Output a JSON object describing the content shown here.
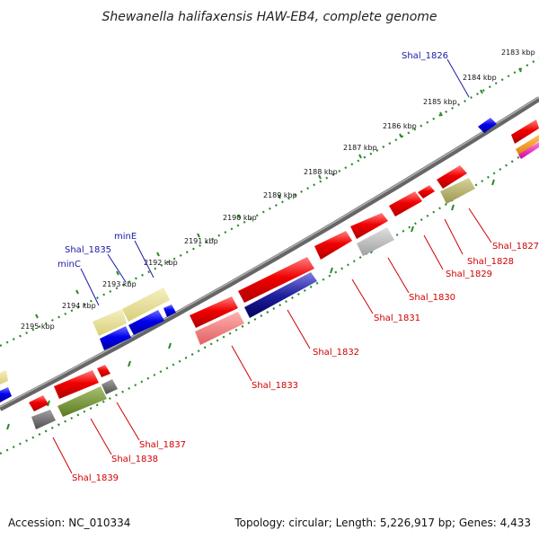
{
  "title": "Shewanella halifaxensis HAW-EB4, complete genome",
  "accession": "Accession: NC_010334",
  "summary": "Topology: circular; Length: 5,226,917 bp; Genes: 4,433",
  "colors": {
    "backbone": "#7a7a7a",
    "tick": "#2a8a2a",
    "forward_gene": "#0000ee",
    "reverse_gene": "#ee0000",
    "blue_label": "#1a1aa8",
    "red_label": "#d00000"
  },
  "scale_labels": [
    "2183 kbp",
    "2184 kbp",
    "2185 kbp",
    "2186 kbp",
    "2187 kbp",
    "2188 kbp",
    "2189 kbp",
    "2190 kbp",
    "2191 kbp",
    "2192 kbp",
    "2193 kbp",
    "2194 kbp",
    "2195 kbp"
  ],
  "upper_gene_labels": [
    "Shal_1826",
    "minE",
    "Shal_1835",
    "minC"
  ],
  "lower_gene_labels": [
    "Shal_1827",
    "Shal_1828",
    "Shal_1829",
    "Shal_1830",
    "Shal_1831",
    "Shal_1832",
    "Shal_1833",
    "Shal_1837",
    "Shal_1838",
    "Shal_1839"
  ]
}
